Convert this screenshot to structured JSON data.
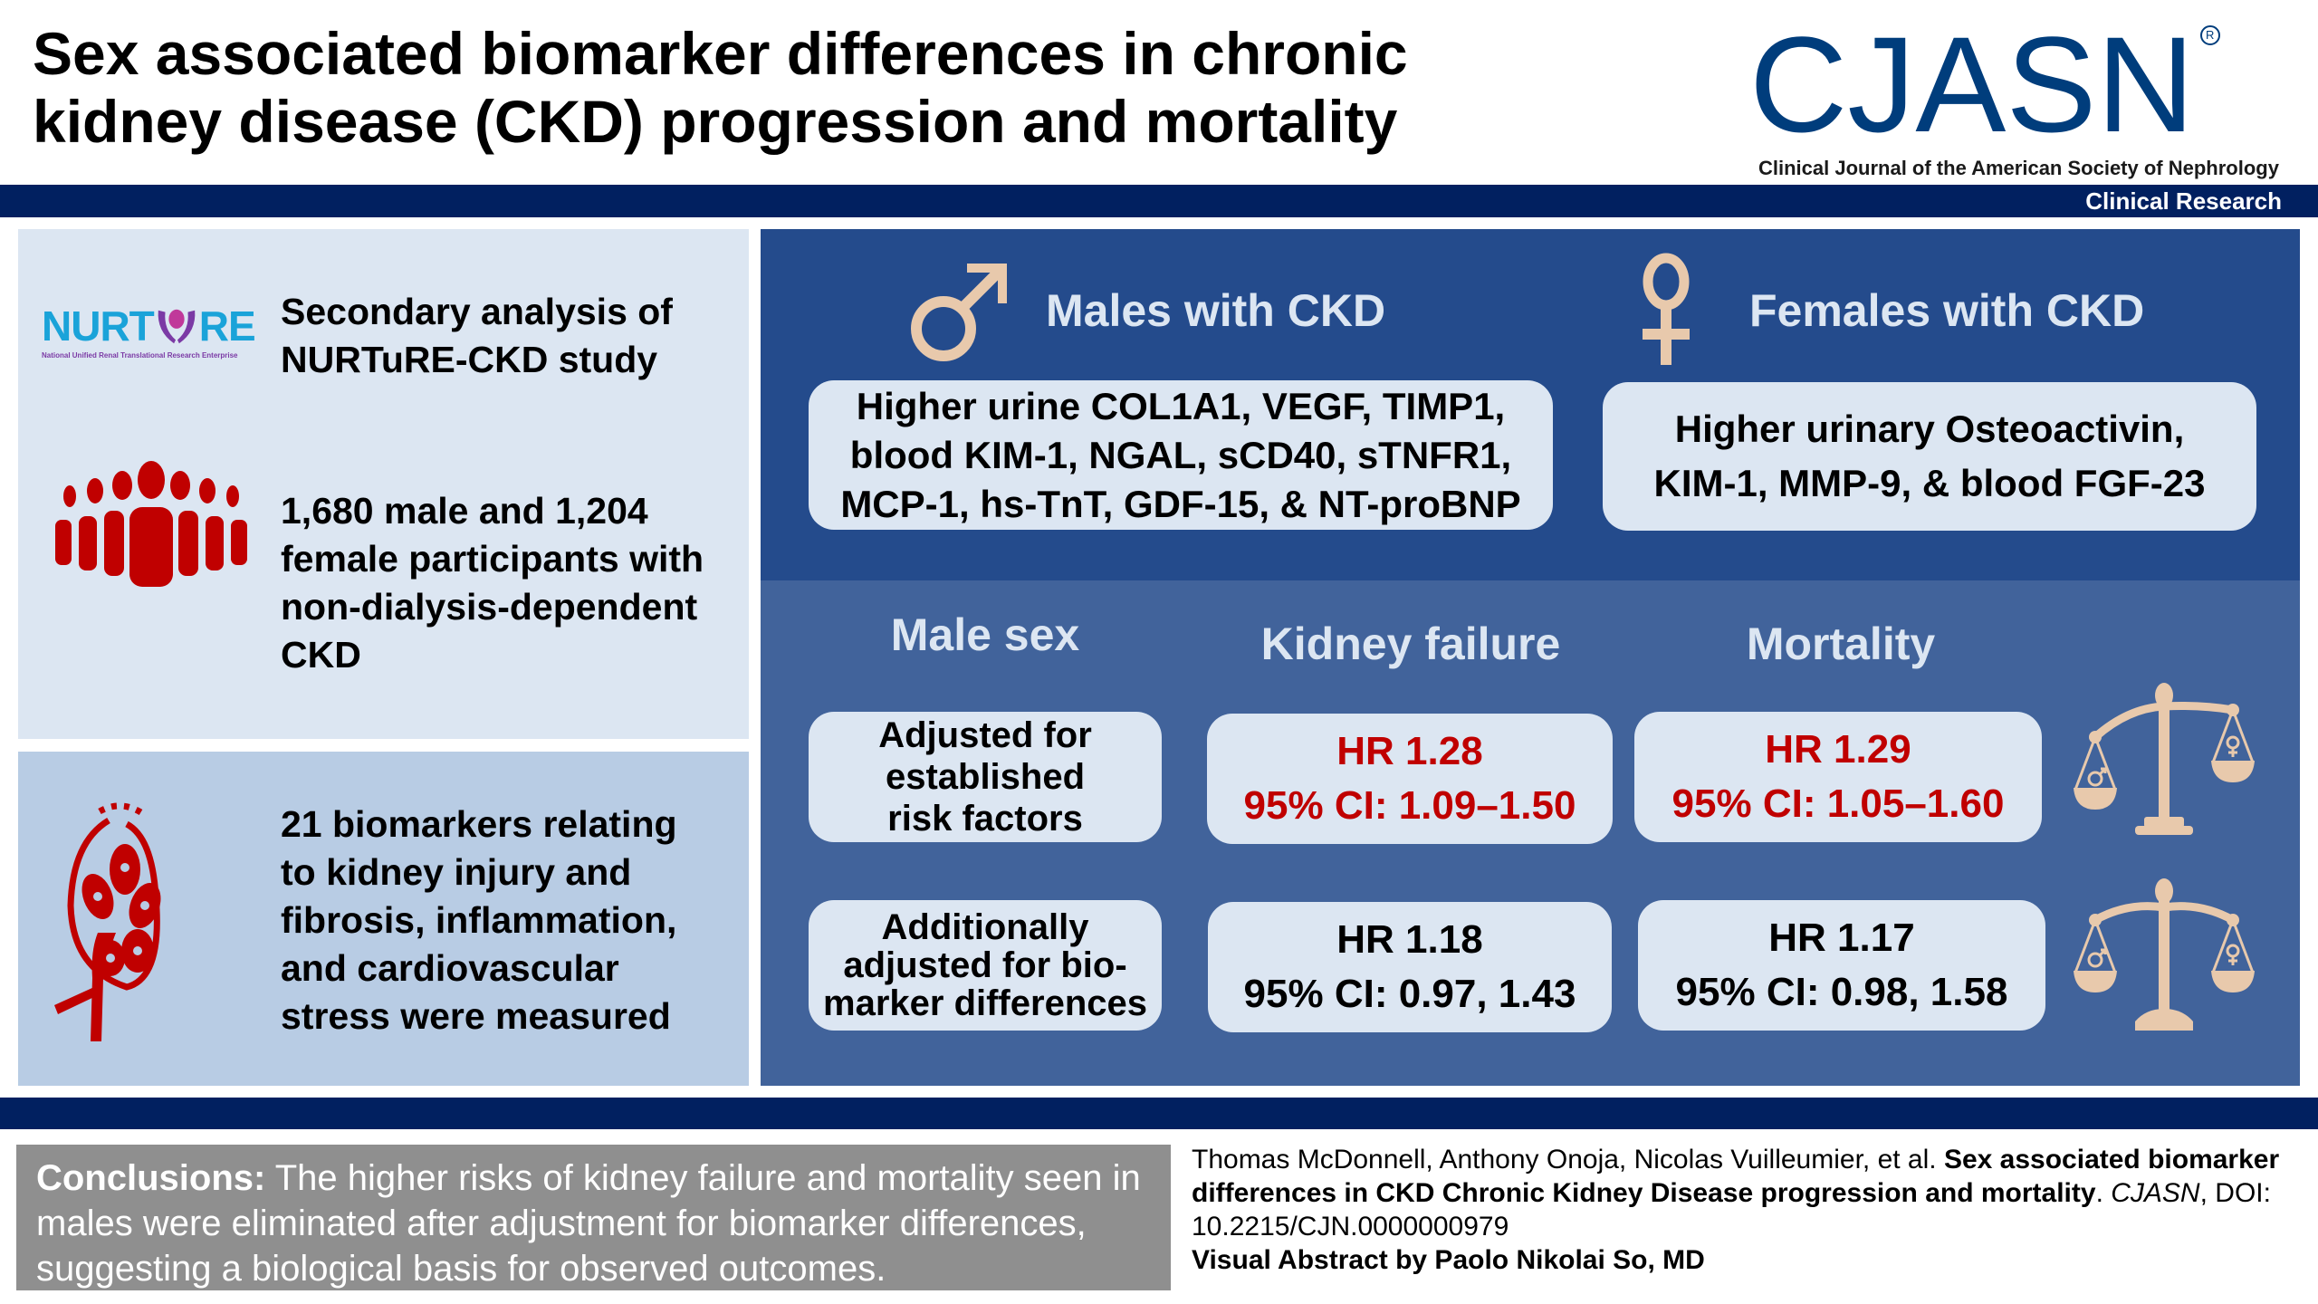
{
  "header": {
    "title_line1": "Sex associated biomarker differences in chronic",
    "title_line2": "kidney disease (CKD) progression and mortality",
    "journal_logo": "CJASN",
    "journal_registered": "R",
    "journal_full_name": "Clinical Journal of the American Society of Nephrology",
    "section_label": "Clinical Research"
  },
  "left_panel": {
    "study": {
      "logo_text_left": "NURT",
      "logo_text_right": "RE",
      "logo_subtitle": "National Unified Renal Translational Research Enterprise",
      "text_line1": "Secondary analysis of",
      "text_line2": "NURTuRE-CKD study",
      "icon": "nurture-logo"
    },
    "participants": {
      "icon": "people-group-icon",
      "lines": [
        "1,680 male and 1,204",
        "female participants with",
        "non-dialysis-dependent",
        "CKD"
      ]
    },
    "biomarkers": {
      "icon": "kidney-icon",
      "lines": [
        "21 biomarkers relating",
        "to kidney injury and",
        "fibrosis, inflammation,",
        "and cardiovascular",
        "stress were measured"
      ]
    }
  },
  "sex_findings": {
    "males": {
      "icon": "male-symbol-icon",
      "heading": "Males with CKD",
      "lines": [
        "Higher urine COL1A1, VEGF, TIMP1,",
        "blood KIM-1, NGAL, sCD40, sTNFR1,",
        "MCP-1, hs-TnT, GDF-15, & NT-proBNP"
      ]
    },
    "females": {
      "icon": "female-symbol-icon",
      "heading": "Females with CKD",
      "lines": [
        "Higher urinary Osteoactivin,",
        "KIM-1, MMP-9, & blood FGF-23"
      ]
    }
  },
  "outcomes": {
    "row_header": "Male sex",
    "columns": [
      "Kidney failure",
      "Mortality"
    ],
    "rows": [
      {
        "label_lines": [
          "Adjusted for",
          "established",
          "risk factors"
        ],
        "kidney_failure": {
          "hr": "HR 1.28",
          "ci": "95% CI: 1.09–1.50"
        },
        "mortality": {
          "hr": "HR 1.29",
          "ci": "95% CI: 1.05–1.60"
        },
        "scale_icon": "tilted-scale-icon",
        "significant": true
      },
      {
        "label_lines": [
          "Additionally",
          "adjusted for bio-",
          "marker differences"
        ],
        "kidney_failure": {
          "hr": "HR 1.18",
          "ci": "95% CI: 0.97, 1.43"
        },
        "mortality": {
          "hr": "HR 1.17",
          "ci": "95% CI: 0.98, 1.58"
        },
        "scale_icon": "balanced-scale-icon",
        "significant": false
      }
    ]
  },
  "conclusions": {
    "label": "Conclusions:",
    "text": " The higher risks of kidney failure and mortality seen in males were eliminated after adjustment for biomarker differences, suggesting a biological basis for observed outcomes."
  },
  "citation": {
    "authors": "Thomas McDonnell, Anthony Onoja, Nicolas Vuilleumier, et al. ",
    "article_title": "Sex associated biomarker differences in CKD Chronic Kidney Disease progression and mortality",
    "after_title": ". ",
    "journal": "CJASN",
    "doi": ", DOI: 10.2215/CJN.0000000979",
    "visual_abstract_by": "Visual Abstract by Paolo Nikolai So, MD"
  },
  "colors": {
    "navy": "#012060",
    "logo_blue": "#003d7c",
    "panel_light": "#dce6f2",
    "panel_mid": "#b8cce4",
    "blue_dark": "#244b8c",
    "blue_mid": "#41639b",
    "accent_red": "#c00000",
    "tan": "#e8c9ac",
    "nurture_cyan": "#1aa3d9",
    "nurture_purple": "#7b3aa5",
    "conclusion_gray": "#8f8f8f"
  }
}
